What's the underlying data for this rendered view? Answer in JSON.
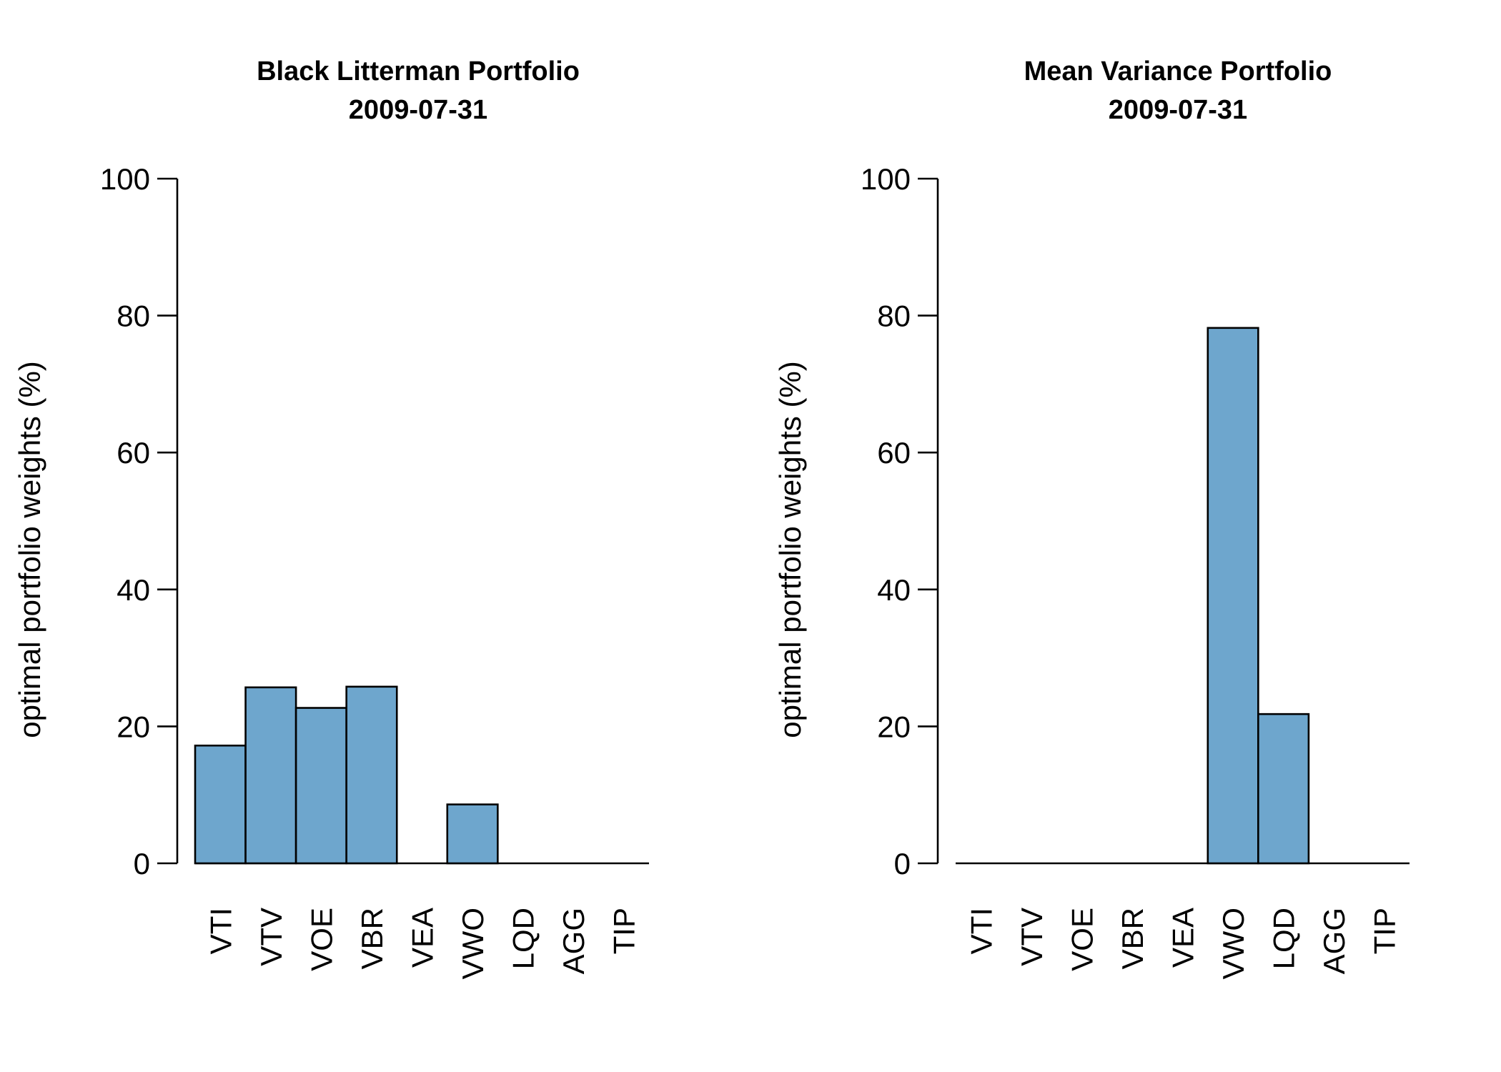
{
  "chart_data": [
    {
      "type": "bar",
      "title": "Black Litterman Portfolio",
      "subtitle": "2009-07-31",
      "ylabel": "optimal portfolio weights (%)",
      "xlabel": "",
      "ylim": [
        0,
        100
      ],
      "yticks": [
        0,
        20,
        40,
        60,
        80,
        100
      ],
      "categories": [
        "VTI",
        "VTV",
        "VOE",
        "VBR",
        "VEA",
        "VWO",
        "LQD",
        "AGG",
        "TIP"
      ],
      "values": [
        17.2,
        25.7,
        22.7,
        25.8,
        0,
        8.6,
        0,
        0,
        0
      ],
      "bar_color": "#6ea6cd",
      "grid": false
    },
    {
      "type": "bar",
      "title": "Mean Variance Portfolio",
      "subtitle": "2009-07-31",
      "ylabel": "optimal portfolio weights (%)",
      "xlabel": "",
      "ylim": [
        0,
        100
      ],
      "yticks": [
        0,
        20,
        40,
        60,
        80,
        100
      ],
      "categories": [
        "VTI",
        "VTV",
        "VOE",
        "VBR",
        "VEA",
        "VWO",
        "LQD",
        "AGG",
        "TIP"
      ],
      "values": [
        0,
        0,
        0,
        0,
        0,
        78.2,
        21.8,
        0,
        0
      ],
      "bar_color": "#6ea6cd",
      "grid": false
    }
  ]
}
